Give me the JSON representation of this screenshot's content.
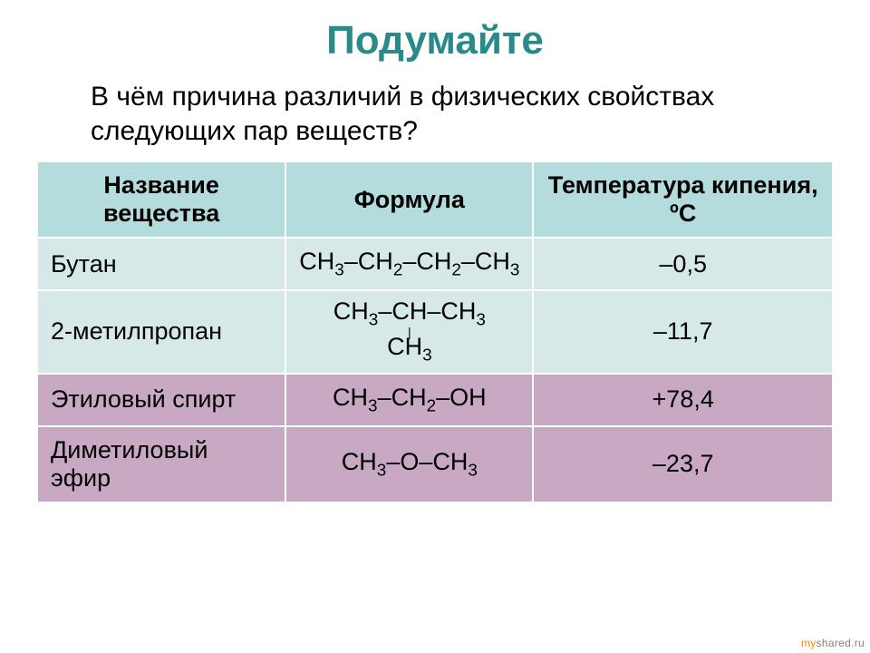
{
  "title": "Подумайте",
  "title_color": "#2a8a8a",
  "subtitle": "В чём причина различий в физических свойствах следующих пар веществ?",
  "table": {
    "header_bg": "#b4dcdc",
    "columns": [
      "Название вещества",
      "Формула",
      "Температура кипения, ºС"
    ],
    "rows": [
      {
        "bg": "#d7e8e8",
        "name": "Бутан",
        "formula_html": "CH<sub>3</sub>–CH<sub>2</sub>–CH<sub>2</sub>–CH<sub>3</sub>",
        "bp": "–0,5"
      },
      {
        "bg": "#d7e8e8",
        "name": "2-метилпропан",
        "formula_html": "<span class='branch'>CH<sub>3</sub>–CH–CH<sub>3</sub></span><span class='branch-bond'>|</span><span class='branch'>CH<sub>3</sub></span>",
        "bp": "–11,7"
      },
      {
        "bg": "#c9a8c4",
        "name": "Этиловый спирт",
        "formula_html": "CH<sub>3</sub>–CH<sub>2</sub>–OH",
        "bp": "+78,4"
      },
      {
        "bg": "#c9a8c4",
        "name": "Диметиловый эфир",
        "formula_html": "CH<sub>3</sub>–O–CH<sub>3</sub>",
        "bp": "–23,7"
      }
    ]
  },
  "watermark": {
    "my": "my",
    "shared": "shared.ru"
  }
}
